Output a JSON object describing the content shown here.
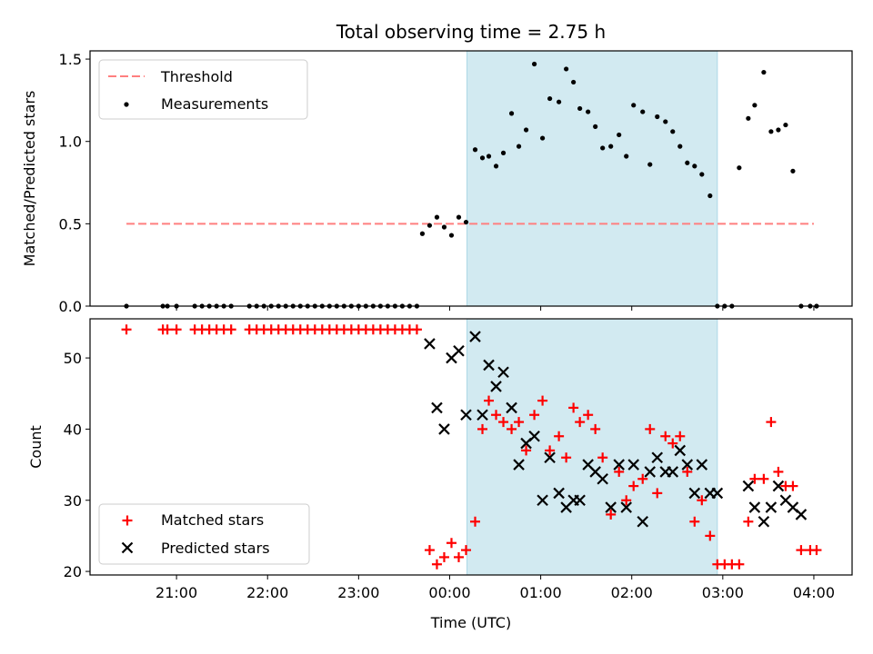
{
  "title": "Total observing time = 2.75 h",
  "colors": {
    "threshold": "#ff7f7f",
    "measurements": "#000000",
    "matched": "#ff0000",
    "predicted": "#000000",
    "shade": "#add8e6"
  },
  "chart_data": [
    {
      "type": "scatter",
      "ylabel": "Matched/Predicted stars",
      "xlabel": "",
      "ylim": [
        0,
        1.55
      ],
      "yticks": [
        0.0,
        0.5,
        1.0,
        1.5
      ],
      "ytick_labels": [
        "0.0",
        "0.5",
        "1.0",
        "1.5"
      ],
      "legend_position": "top-left",
      "threshold": {
        "name": "Threshold",
        "value": 0.5,
        "x_start": 20.45,
        "x_end": 28.0
      },
      "series": [
        {
          "name": "Measurements",
          "x": [
            20.45,
            20.85,
            20.9,
            21.0,
            21.2,
            21.28,
            21.36,
            21.44,
            21.52,
            21.6,
            21.8,
            21.88,
            21.96,
            22.04,
            22.12,
            22.2,
            22.28,
            22.36,
            22.44,
            22.52,
            22.6,
            22.68,
            22.76,
            22.84,
            22.92,
            23.0,
            23.08,
            23.16,
            23.24,
            23.32,
            23.4,
            23.48,
            23.56,
            23.64,
            23.7,
            23.78,
            23.86,
            23.94,
            24.02,
            24.1,
            24.18,
            24.28,
            24.36,
            24.43,
            24.51,
            24.59,
            24.68,
            24.76,
            24.84,
            24.93,
            25.02,
            25.1,
            25.2,
            25.28,
            25.36,
            25.43,
            25.52,
            25.6,
            25.68,
            25.77,
            25.86,
            25.94,
            26.02,
            26.12,
            26.2,
            26.28,
            26.37,
            26.45,
            26.53,
            26.61,
            26.69,
            26.77,
            26.86,
            26.94,
            27.02,
            27.1,
            27.18,
            27.28,
            27.35,
            27.45,
            27.53,
            27.61,
            27.69,
            27.77,
            27.86,
            27.96,
            28.03
          ],
          "y": [
            0,
            0,
            0,
            0,
            0,
            0,
            0,
            0,
            0,
            0,
            0,
            0,
            0,
            0,
            0,
            0,
            0,
            0,
            0,
            0,
            0,
            0,
            0,
            0,
            0,
            0,
            0,
            0,
            0,
            0,
            0,
            0,
            0,
            0,
            0.44,
            0.49,
            0.54,
            0.48,
            0.43,
            0.54,
            0.51,
            0.95,
            0.9,
            0.91,
            0.85,
            0.93,
            1.17,
            0.97,
            1.07,
            1.47,
            1.02,
            1.26,
            1.24,
            1.44,
            1.36,
            1.2,
            1.18,
            1.09,
            0.96,
            0.97,
            1.04,
            0.91,
            1.22,
            1.18,
            0.86,
            1.15,
            1.12,
            1.06,
            0.97,
            0.87,
            0.85,
            0.8,
            0.67,
            0,
            0,
            0,
            0.84,
            1.14,
            1.22,
            1.42,
            1.06,
            1.07,
            1.1,
            0.82,
            0,
            0,
            0
          ]
        }
      ],
      "shaded_region": {
        "x_start": 24.19,
        "x_end": 26.94
      }
    },
    {
      "type": "scatter",
      "ylabel": "Count",
      "xlabel": "Time (UTC)",
      "ylim": [
        19.5,
        55.5
      ],
      "yticks": [
        20,
        30,
        40,
        50
      ],
      "ytick_labels": [
        "20",
        "30",
        "40",
        "50"
      ],
      "xlim": [
        20.05,
        28.42
      ],
      "xticks": [
        21,
        22,
        23,
        24,
        25,
        26,
        27,
        28
      ],
      "xtick_labels": [
        "21:00",
        "22:00",
        "23:00",
        "00:00",
        "01:00",
        "02:00",
        "03:00",
        "04:00"
      ],
      "legend_position": "bottom-left",
      "series": [
        {
          "name": "Matched stars",
          "x": [
            20.45,
            20.85,
            20.9,
            21.0,
            21.2,
            21.28,
            21.36,
            21.44,
            21.52,
            21.6,
            21.8,
            21.88,
            21.96,
            22.04,
            22.12,
            22.2,
            22.28,
            22.36,
            22.44,
            22.52,
            22.6,
            22.68,
            22.76,
            22.84,
            22.92,
            23.0,
            23.08,
            23.16,
            23.24,
            23.32,
            23.4,
            23.48,
            23.56,
            23.64,
            23.78,
            23.86,
            23.94,
            24.02,
            24.1,
            24.18,
            24.28,
            24.36,
            24.43,
            24.51,
            24.59,
            24.68,
            24.76,
            24.84,
            24.93,
            25.02,
            25.1,
            25.2,
            25.28,
            25.36,
            25.43,
            25.52,
            25.6,
            25.68,
            25.77,
            25.86,
            25.94,
            26.02,
            26.12,
            26.2,
            26.28,
            26.37,
            26.45,
            26.53,
            26.61,
            26.69,
            26.77,
            26.86,
            26.94,
            27.02,
            27.1,
            27.18,
            27.28,
            27.35,
            27.45,
            27.53,
            27.61,
            27.69,
            27.77,
            27.86,
            27.96,
            28.03
          ],
          "y": [
            54,
            54,
            54,
            54,
            54,
            54,
            54,
            54,
            54,
            54,
            54,
            54,
            54,
            54,
            54,
            54,
            54,
            54,
            54,
            54,
            54,
            54,
            54,
            54,
            54,
            54,
            54,
            54,
            54,
            54,
            54,
            54,
            54,
            54,
            23,
            21,
            22,
            24,
            22,
            23,
            27,
            40,
            44,
            42,
            41,
            40,
            41,
            37,
            42,
            44,
            37,
            39,
            36,
            43,
            41,
            42,
            40,
            36,
            28,
            34,
            30,
            32,
            33,
            40,
            31,
            39,
            38,
            39,
            34,
            27,
            30,
            25,
            21,
            21,
            21,
            21,
            27,
            33,
            33,
            41,
            34,
            32,
            32,
            23,
            23,
            23
          ]
        },
        {
          "name": "Predicted stars",
          "x": [
            23.78,
            23.86,
            23.94,
            24.02,
            24.1,
            24.18,
            24.28,
            24.36,
            24.43,
            24.51,
            24.59,
            24.68,
            24.76,
            24.84,
            24.93,
            25.02,
            25.1,
            25.2,
            25.28,
            25.36,
            25.43,
            25.52,
            25.6,
            25.68,
            25.77,
            25.86,
            25.94,
            26.02,
            26.12,
            26.2,
            26.28,
            26.37,
            26.45,
            26.53,
            26.61,
            26.69,
            26.77,
            26.86,
            26.94,
            27.28,
            27.35,
            27.45,
            27.53,
            27.61,
            27.69,
            27.77,
            27.86
          ],
          "y": [
            52,
            43,
            40,
            50,
            51,
            42,
            53,
            42,
            49,
            46,
            48,
            43,
            35,
            38,
            39,
            30,
            36,
            31,
            29,
            30,
            30,
            35,
            34,
            33,
            29,
            35,
            29,
            35,
            27,
            34,
            36,
            34,
            34,
            37,
            35,
            31,
            35,
            31,
            31,
            32,
            29,
            27,
            29,
            32,
            30,
            29,
            28
          ]
        }
      ],
      "shaded_region": {
        "x_start": 24.19,
        "x_end": 26.94
      }
    }
  ]
}
